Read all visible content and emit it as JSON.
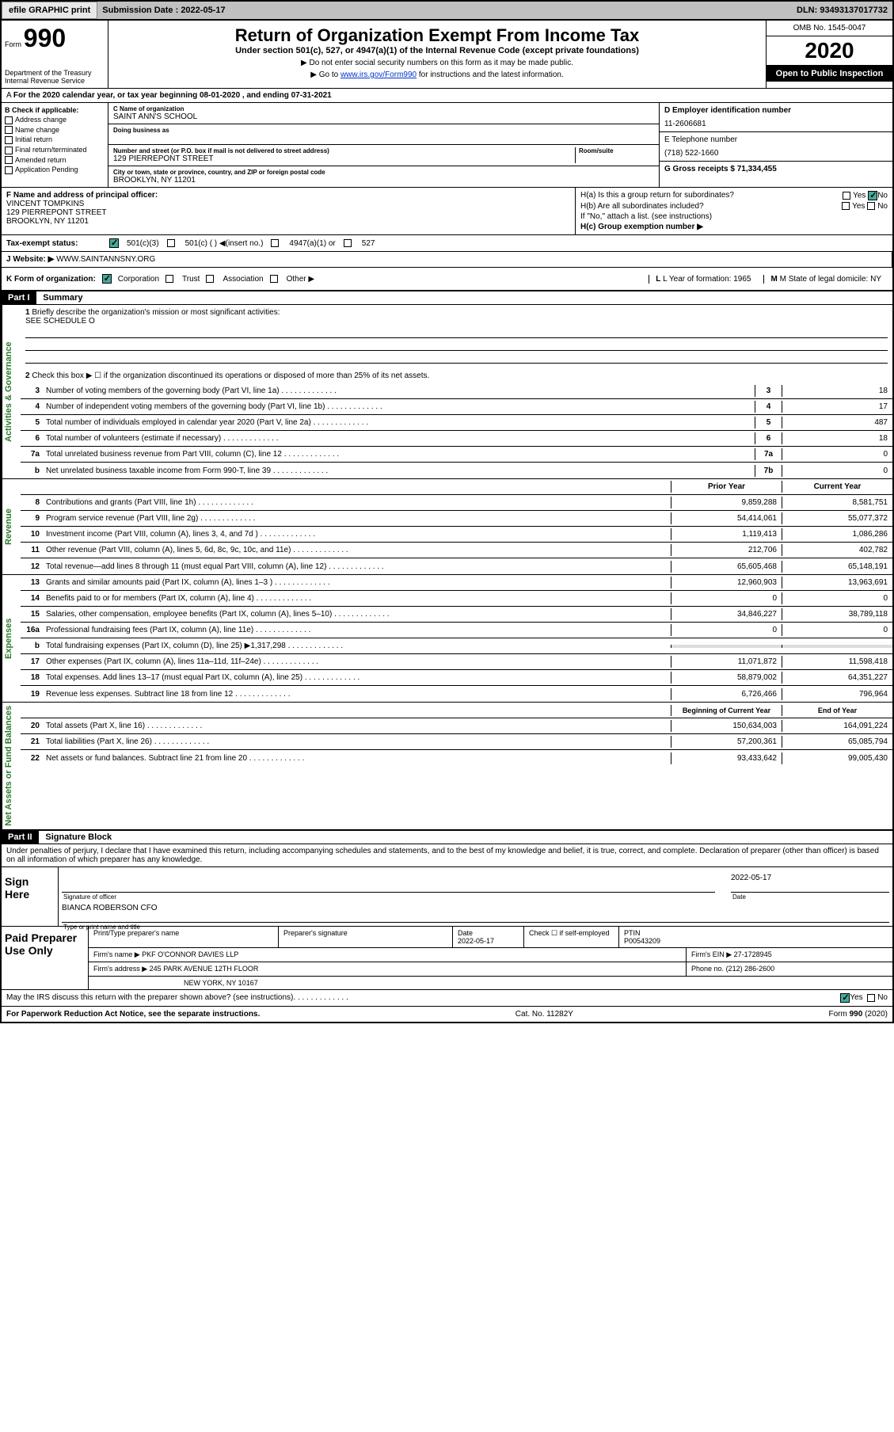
{
  "header": {
    "efile": "efile GRAPHIC print",
    "sub_label": "Submission Date : 2022-05-17",
    "dln_label": "DLN: 93493137017732"
  },
  "form": {
    "prefix": "Form",
    "number": "990",
    "title": "Return of Organization Exempt From Income Tax",
    "subtitle": "Under section 501(c), 527, or 4947(a)(1) of the Internal Revenue Code (except private foundations)",
    "note1": "Do not enter social security numbers on this form as it may be made public.",
    "note2_pre": "Go to ",
    "note2_link": "www.irs.gov/Form990",
    "note2_post": " for instructions and the latest information.",
    "dept": "Department of the Treasury",
    "irs": "Internal Revenue Service",
    "omb": "OMB No. 1545-0047",
    "year": "2020",
    "open": "Open to Public Inspection"
  },
  "rowA": "For the 2020 calendar year, or tax year beginning 08-01-2020     , and ending 07-31-2021",
  "boxB": {
    "label": "B Check if applicable:",
    "items": [
      "Address change",
      "Name change",
      "Initial return",
      "Final return/terminated",
      "Amended return",
      "Application Pending"
    ]
  },
  "boxC": {
    "label": "C Name of organization",
    "name": "SAINT ANN'S SCHOOL",
    "dba_label": "Doing business as",
    "addr_label": "Number and street (or P.O. box if mail is not delivered to street address)",
    "addr": "129 PIERREPONT STREET",
    "room_label": "Room/suite",
    "city_label": "City or town, state or province, country, and ZIP or foreign postal code",
    "city": "BROOKLYN, NY  11201"
  },
  "boxD": {
    "label": "D Employer identification number",
    "val": "11-2606681"
  },
  "boxE": {
    "label": "E Telephone number",
    "val": "(718) 522-1660"
  },
  "boxG": {
    "label": "G Gross receipts $ 71,334,455"
  },
  "boxF": {
    "label": "F  Name and address of principal officer:",
    "name": "VINCENT TOMPKINS",
    "addr": "129 PIERREPONT STREET",
    "city": "BROOKLYN, NY  11201"
  },
  "boxH": {
    "a": "H(a)  Is this a group return for subordinates?",
    "b": "H(b)  Are all subordinates included?",
    "note": "If \"No,\" attach a list. (see instructions)",
    "c": "H(c)  Group exemption number ▶"
  },
  "taxStatus": {
    "label": "Tax-exempt status:",
    "o1": "501(c)(3)",
    "o2": "501(c) (  ) ◀(insert no.)",
    "o3": "4947(a)(1) or",
    "o4": "527"
  },
  "boxJ": {
    "label": "J     Website: ▶",
    "val": "WWW.SAINTANNSNY.ORG"
  },
  "boxK": {
    "label": "K Form of organization:",
    "o1": "Corporation",
    "o2": "Trust",
    "o3": "Association",
    "o4": "Other ▶"
  },
  "boxL": {
    "label": "L Year of formation: 1965"
  },
  "boxM": {
    "label": "M State of legal domicile: NY"
  },
  "partI": {
    "title": "Part I",
    "label": "Summary",
    "l1": "Briefly describe the organization's mission or most significant activities:",
    "l1v": "SEE SCHEDULE O",
    "l2": "Check this box ▶ ☐  if the organization discontinued its operations or disposed of more than 25% of its net assets.",
    "rotA": "Activities & Governance",
    "rotR": "Revenue",
    "rotE": "Expenses",
    "rotN": "Net Assets or Fund Balances",
    "lines": [
      {
        "n": "3",
        "t": "Number of voting members of the governing body (Part VI, line 1a)",
        "b": "3",
        "v": "18"
      },
      {
        "n": "4",
        "t": "Number of independent voting members of the governing body (Part VI, line 1b)",
        "b": "4",
        "v": "17"
      },
      {
        "n": "5",
        "t": "Total number of individuals employed in calendar year 2020 (Part V, line 2a)",
        "b": "5",
        "v": "487"
      },
      {
        "n": "6",
        "t": "Total number of volunteers (estimate if necessary)",
        "b": "6",
        "v": "18"
      },
      {
        "n": "7a",
        "t": "Total unrelated business revenue from Part VIII, column (C), line 12",
        "b": "7a",
        "v": "0"
      },
      {
        "n": "b",
        "t": "Net unrelated business taxable income from Form 990-T, line 39",
        "b": "7b",
        "v": "0"
      }
    ],
    "hdrPrior": "Prior Year",
    "hdrCurr": "Current Year",
    "rev": [
      {
        "n": "8",
        "t": "Contributions and grants (Part VIII, line 1h)",
        "p": "9,859,288",
        "c": "8,581,751"
      },
      {
        "n": "9",
        "t": "Program service revenue (Part VIII, line 2g)",
        "p": "54,414,061",
        "c": "55,077,372"
      },
      {
        "n": "10",
        "t": "Investment income (Part VIII, column (A), lines 3, 4, and 7d )",
        "p": "1,119,413",
        "c": "1,086,286"
      },
      {
        "n": "11",
        "t": "Other revenue (Part VIII, column (A), lines 5, 6d, 8c, 9c, 10c, and 11e)",
        "p": "212,706",
        "c": "402,782"
      },
      {
        "n": "12",
        "t": "Total revenue—add lines 8 through 11 (must equal Part VIII, column (A), line 12)",
        "p": "65,605,468",
        "c": "65,148,191"
      }
    ],
    "exp": [
      {
        "n": "13",
        "t": "Grants and similar amounts paid (Part IX, column (A), lines 1–3 )",
        "p": "12,960,903",
        "c": "13,963,691"
      },
      {
        "n": "14",
        "t": "Benefits paid to or for members (Part IX, column (A), line 4)",
        "p": "0",
        "c": "0"
      },
      {
        "n": "15",
        "t": "Salaries, other compensation, employee benefits (Part IX, column (A), lines 5–10)",
        "p": "34,846,227",
        "c": "38,789,118"
      },
      {
        "n": "16a",
        "t": "Professional fundraising fees (Part IX, column (A), line 11e)",
        "p": "0",
        "c": "0"
      },
      {
        "n": "b",
        "t": "Total fundraising expenses (Part IX, column (D), line 25) ▶1,317,298",
        "p": "",
        "c": ""
      },
      {
        "n": "17",
        "t": "Other expenses (Part IX, column (A), lines 11a–11d, 11f–24e)",
        "p": "11,071,872",
        "c": "11,598,418"
      },
      {
        "n": "18",
        "t": "Total expenses. Add lines 13–17 (must equal Part IX, column (A), line 25)",
        "p": "58,879,002",
        "c": "64,351,227"
      },
      {
        "n": "19",
        "t": "Revenue less expenses. Subtract line 18 from line 12",
        "p": "6,726,466",
        "c": "796,964"
      }
    ],
    "hdrBeg": "Beginning of Current Year",
    "hdrEnd": "End of Year",
    "net": [
      {
        "n": "20",
        "t": "Total assets (Part X, line 16)",
        "p": "150,634,003",
        "c": "164,091,224"
      },
      {
        "n": "21",
        "t": "Total liabilities (Part X, line 26)",
        "p": "57,200,361",
        "c": "65,085,794"
      },
      {
        "n": "22",
        "t": "Net assets or fund balances. Subtract line 21 from line 20",
        "p": "93,433,642",
        "c": "99,005,430"
      }
    ]
  },
  "partII": {
    "title": "Part II",
    "label": "Signature Block",
    "perjury": "Under penalties of perjury, I declare that I have examined this return, including accompanying schedules and statements, and to the best of my knowledge and belief, it is true, correct, and complete. Declaration of preparer (other than officer) is based on all information of which preparer has any knowledge."
  },
  "sign": {
    "label": "Sign Here",
    "sigCap": "Signature of officer",
    "dateCap": "Date",
    "date": "2022-05-17",
    "name": "BIANCA ROBERSON  CFO",
    "nameCap": "Type or print name and title"
  },
  "prep": {
    "label": "Paid Preparer Use Only",
    "h1": "Print/Type preparer's name",
    "h2": "Preparer's signature",
    "h3": "Date",
    "h3v": "2022-05-17",
    "h4": "Check ☐  if self-employed",
    "h5": "PTIN",
    "h5v": "P00543209",
    "firmLabel": "Firm's name    ▶",
    "firm": "PKF O'CONNOR DAVIES LLP",
    "einLabel": "Firm's EIN ▶",
    "ein": "27-1728945",
    "addrLabel": "Firm's address ▶",
    "addr1": "245 PARK AVENUE 12TH FLOOR",
    "addr2": "NEW YORK, NY  10167",
    "phoneLabel": "Phone no.",
    "phone": "(212) 286-2600"
  },
  "discuss": "May the IRS discuss this return with the preparer shown above? (see instructions)",
  "footer": {
    "left": "For Paperwork Reduction Act Notice, see the separate instructions.",
    "mid": "Cat. No. 11282Y",
    "right": "Form 990 (2020)"
  },
  "yesno": {
    "yes": "Yes",
    "no": "No"
  }
}
